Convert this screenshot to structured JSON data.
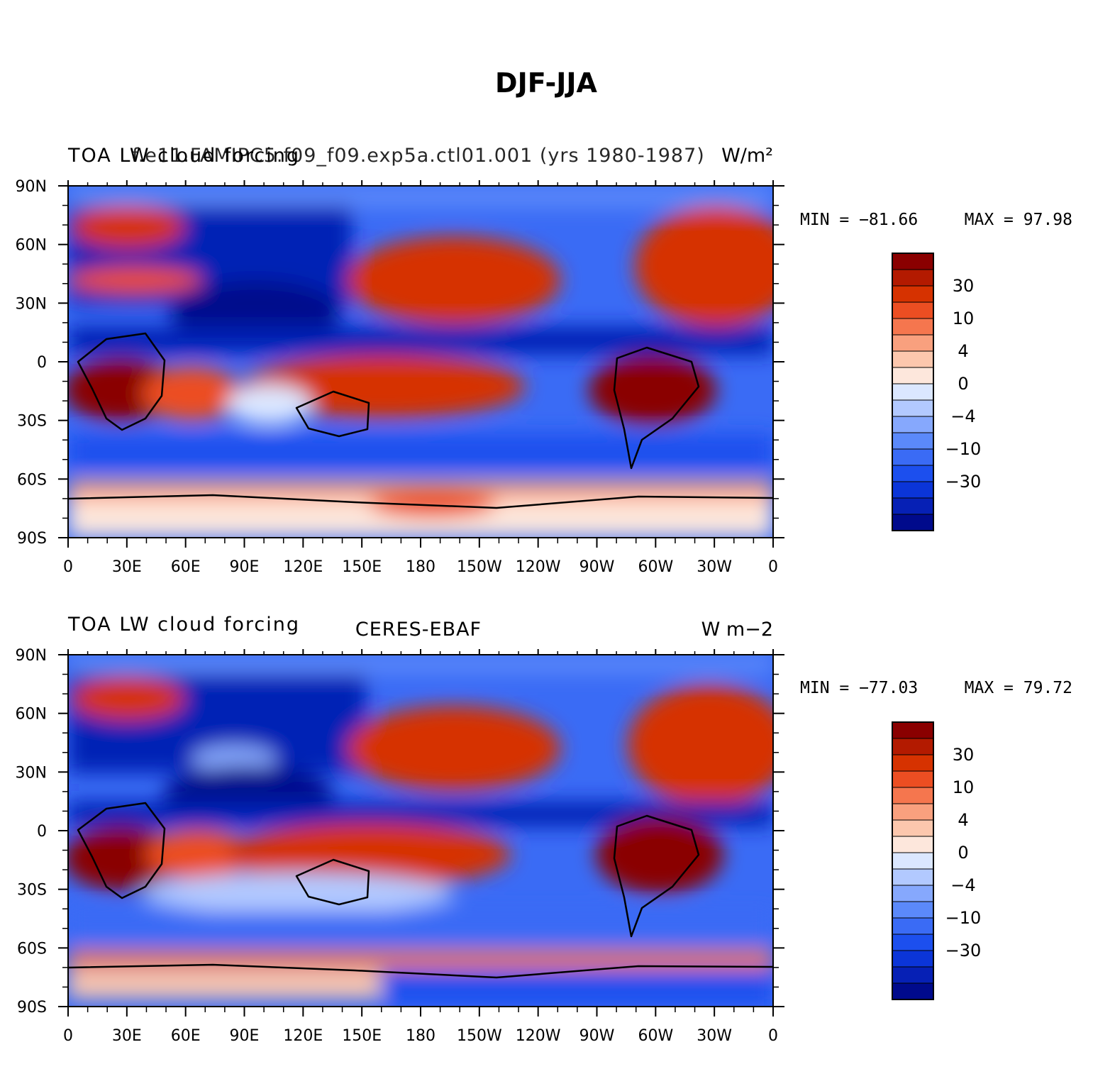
{
  "title": "DJF-JJA",
  "colors": {
    "levels_palette": [
      "#000a8c",
      "#0620b5",
      "#0b35d8",
      "#1c4fee",
      "#3a6bf5",
      "#5b89fa",
      "#86a8fd",
      "#b2c9ff",
      "#dbe7ff",
      "#fde7dc",
      "#fcc7ad",
      "#f9a07e",
      "#f5764e",
      "#ec4e22",
      "#d63200",
      "#b31a00",
      "#8a0000"
    ],
    "land_outline": "#000000"
  },
  "chart_data": [
    {
      "type": "heatmap",
      "subtitle_left": "TOA LW cloud forcing",
      "subtitle_center": "f.e11.FAMIPC5.f09_f09.exp5a.ctl01.001 (yrs 1980-1987)",
      "subtitle_right": "W/m²",
      "min_label": "MIN = −81.66",
      "max_label": "MAX =   97.98",
      "colorbar_ticks": [
        "30",
        "10",
        "4",
        "0",
        "−4",
        "−10",
        "−30"
      ],
      "xtick_labels": [
        "0",
        "30E",
        "60E",
        "90E",
        "120E",
        "150E",
        "180",
        "150W",
        "120W",
        "90W",
        "60W",
        "30W",
        "0"
      ],
      "ytick_labels": [
        "90N",
        "60N",
        "30N",
        "0",
        "30S",
        "60S",
        "90S"
      ]
    },
    {
      "type": "heatmap",
      "subtitle_left": "TOA LW cloud forcing",
      "subtitle_center": "CERES-EBAF",
      "subtitle_right": "W m−2",
      "min_label": "MIN = −77.03",
      "max_label": "MAX =   79.72",
      "colorbar_ticks": [
        "30",
        "10",
        "4",
        "0",
        "−4",
        "−10",
        "−30"
      ],
      "xtick_labels": [
        "0",
        "30E",
        "60E",
        "90E",
        "120E",
        "150E",
        "180",
        "150W",
        "120W",
        "90W",
        "60W",
        "30W",
        "0"
      ],
      "ytick_labels": [
        "90N",
        "60N",
        "30N",
        "0",
        "30S",
        "60S",
        "90S"
      ]
    }
  ]
}
